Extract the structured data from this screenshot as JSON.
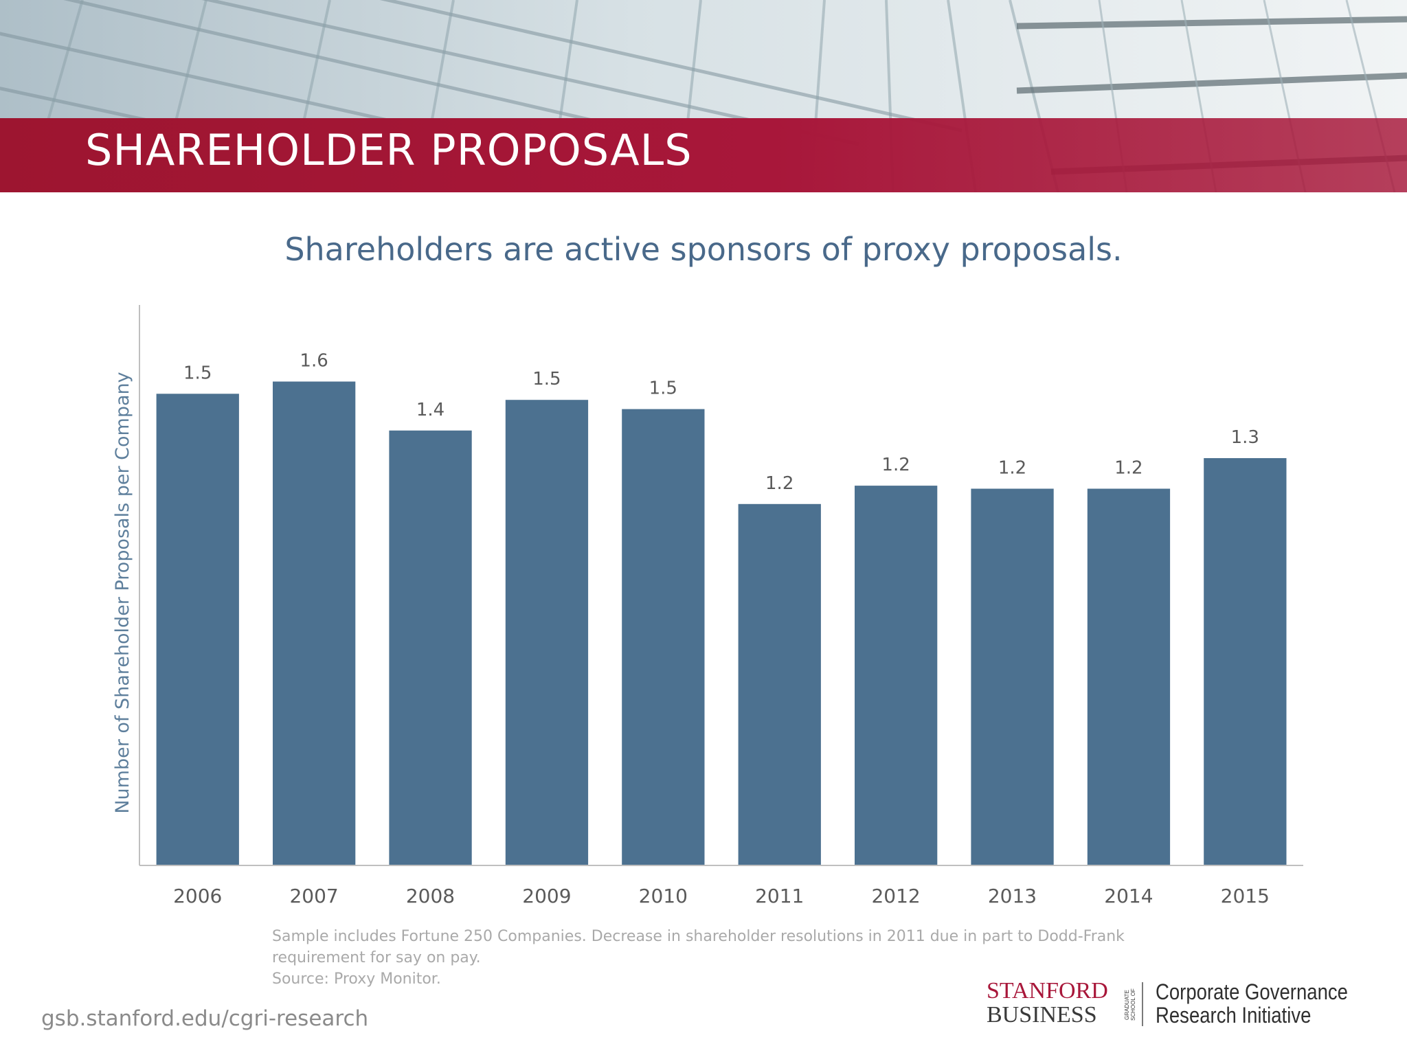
{
  "slide": {
    "title": "SHAREHOLDER PROPOSALS",
    "subtitle": "Shareholders are active sponsors of proxy proposals.",
    "footnote_lines": [
      "Sample includes Fortune 250 Companies. Decrease in shareholder resolutions in 2011 due in part to Dodd-Frank",
      "requirement for say on pay.",
      "Source: Proxy Monitor."
    ],
    "site_url": "gsb.stanford.edu/cgri-research",
    "logo": {
      "line1": "STANFORD",
      "line2": "BUSINESS",
      "side_label": "GRADUATE SCHOOL OF",
      "org_line1": "Corporate Governance",
      "org_line2": "Research Initiative"
    }
  },
  "colors": {
    "bar": "#4c7190",
    "title_band": "#a8173a",
    "subtitle": "#49698a",
    "axis": "#bfbfbf",
    "label": "#5a5a5a"
  },
  "chart_data": {
    "type": "bar",
    "title": "",
    "xlabel": "",
    "ylabel": "Number of Shareholder Proposals per Company",
    "categories": [
      "2006",
      "2007",
      "2008",
      "2009",
      "2010",
      "2011",
      "2012",
      "2013",
      "2014",
      "2015"
    ],
    "values": [
      1.54,
      1.58,
      1.42,
      1.52,
      1.49,
      1.18,
      1.24,
      1.23,
      1.23,
      1.33
    ],
    "value_labels": [
      "1.5",
      "1.6",
      "1.4",
      "1.5",
      "1.5",
      "1.2",
      "1.2",
      "1.2",
      "1.2",
      "1.3"
    ],
    "ylim": [
      0,
      1.83
    ],
    "grid": false,
    "legend": "none"
  }
}
